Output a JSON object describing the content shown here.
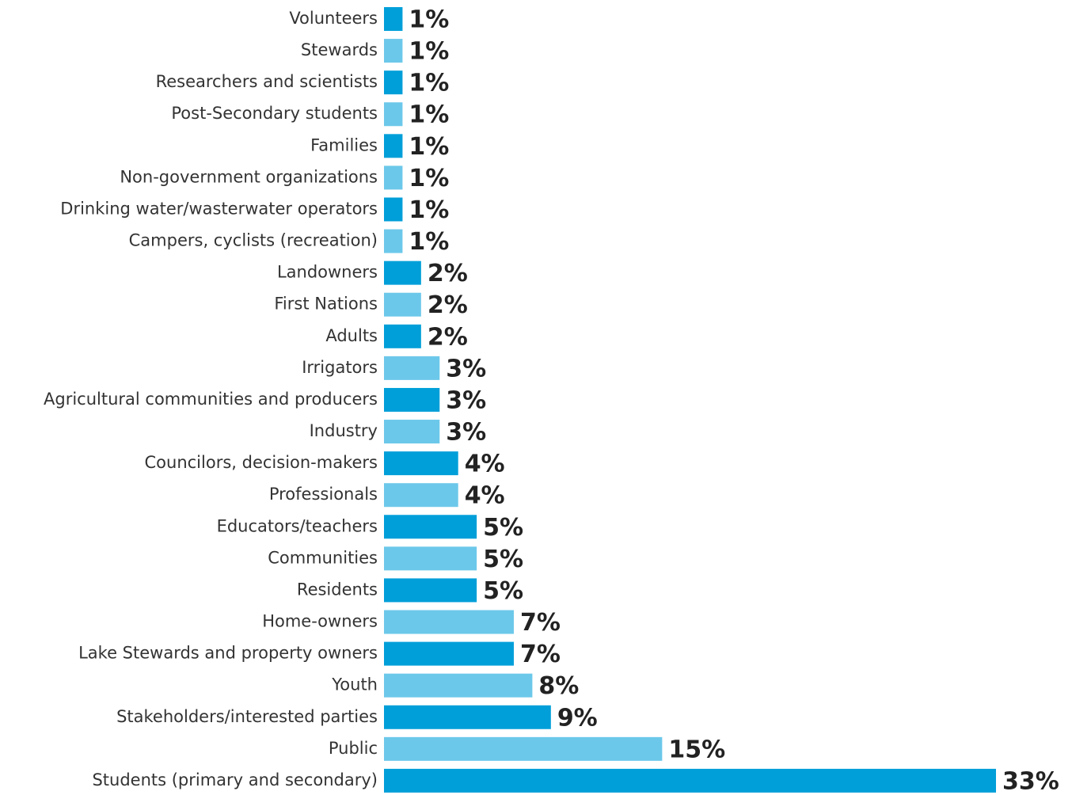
{
  "chart_data": {
    "type": "barh",
    "categories": [
      "Volunteers",
      "Stewards",
      "Researchers and scientists",
      "Post-Secondary students",
      "Families",
      "Non-government organizations",
      "Drinking water/wasterwater operators",
      "Campers, cyclists (recreation)",
      "Landowners",
      "First Nations",
      "Adults",
      "Irrigators",
      "Agricultural communities and producers",
      "Industry",
      "Councilors, decision-makers",
      "Professionals",
      "Educators/teachers",
      "Communities",
      "Residents",
      "Home-owners",
      "Lake Stewards and property owners",
      "Youth",
      "Stakeholders/interested parties",
      "Public",
      "Students (primary and secondary)"
    ],
    "values": [
      1,
      1,
      1,
      1,
      1,
      1,
      1,
      1,
      2,
      2,
      2,
      3,
      3,
      3,
      4,
      4,
      5,
      5,
      5,
      7,
      7,
      8,
      9,
      15,
      33
    ],
    "value_labels": [
      "1%",
      "1%",
      "1%",
      "1%",
      "1%",
      "1%",
      "1%",
      "1%",
      "2%",
      "2%",
      "2%",
      "3%",
      "3%",
      "3%",
      "4%",
      "4%",
      "5%",
      "5%",
      "5%",
      "7%",
      "7%",
      "8%",
      "9%",
      "15%",
      "33%"
    ],
    "colors": [
      "#009fd9",
      "#6cc8ea",
      "#009fd9",
      "#6cc8ea",
      "#009fd9",
      "#6cc8ea",
      "#009fd9",
      "#6cc8ea",
      "#009fd9",
      "#6cc8ea",
      "#009fd9",
      "#6cc8ea",
      "#009fd9",
      "#6cc8ea",
      "#009fd9",
      "#6cc8ea",
      "#009fd9",
      "#6cc8ea",
      "#009fd9",
      "#6cc8ea",
      "#009fd9",
      "#6cc8ea",
      "#009fd9",
      "#6cc8ea",
      "#009fd9"
    ]
  }
}
